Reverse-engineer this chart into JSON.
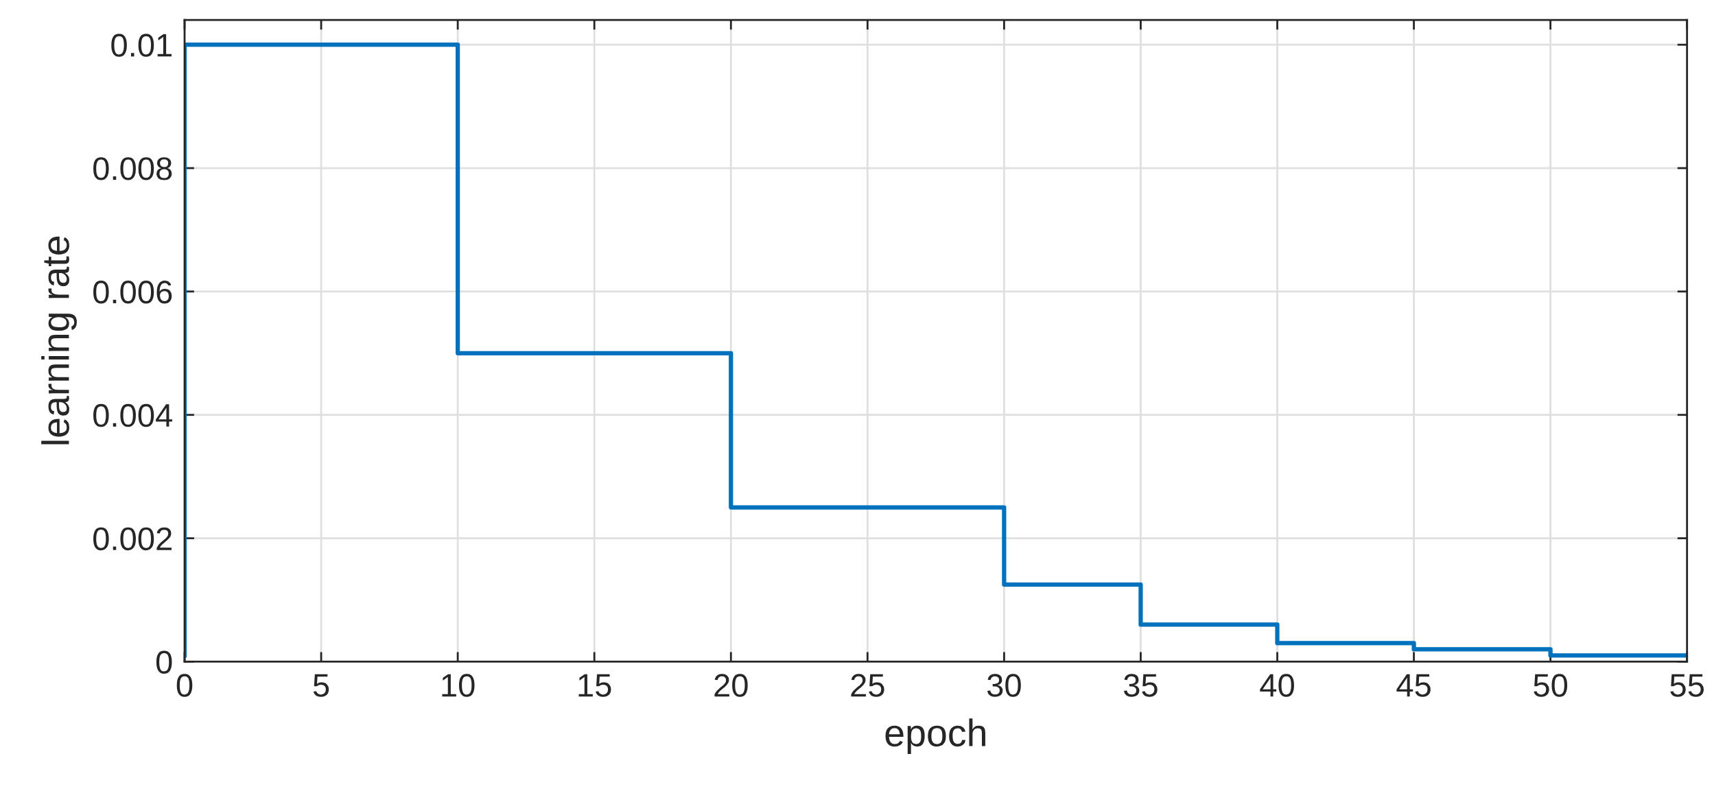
{
  "chart_data": {
    "type": "step",
    "xlabel": "epoch",
    "ylabel": "learning rate",
    "x": [
      0,
      0,
      10,
      20,
      30,
      35,
      40,
      45,
      50,
      55
    ],
    "series": [
      {
        "color": "#0072bd",
        "values": [
          0.0001,
          0.01,
          0.005,
          0.0025,
          0.00125,
          0.0006,
          0.0003,
          0.0002,
          0.0001,
          0.0001
        ]
      }
    ],
    "xlim": [
      0,
      55
    ],
    "xticks": [
      0,
      5,
      10,
      15,
      20,
      25,
      30,
      35,
      40,
      45,
      50,
      55
    ],
    "ylim": [
      0,
      0.0104
    ],
    "yticks": [
      0,
      0.002,
      0.004,
      0.006,
      0.008,
      0.01
    ],
    "grid": true,
    "line_style": "solid",
    "marker": "none"
  }
}
